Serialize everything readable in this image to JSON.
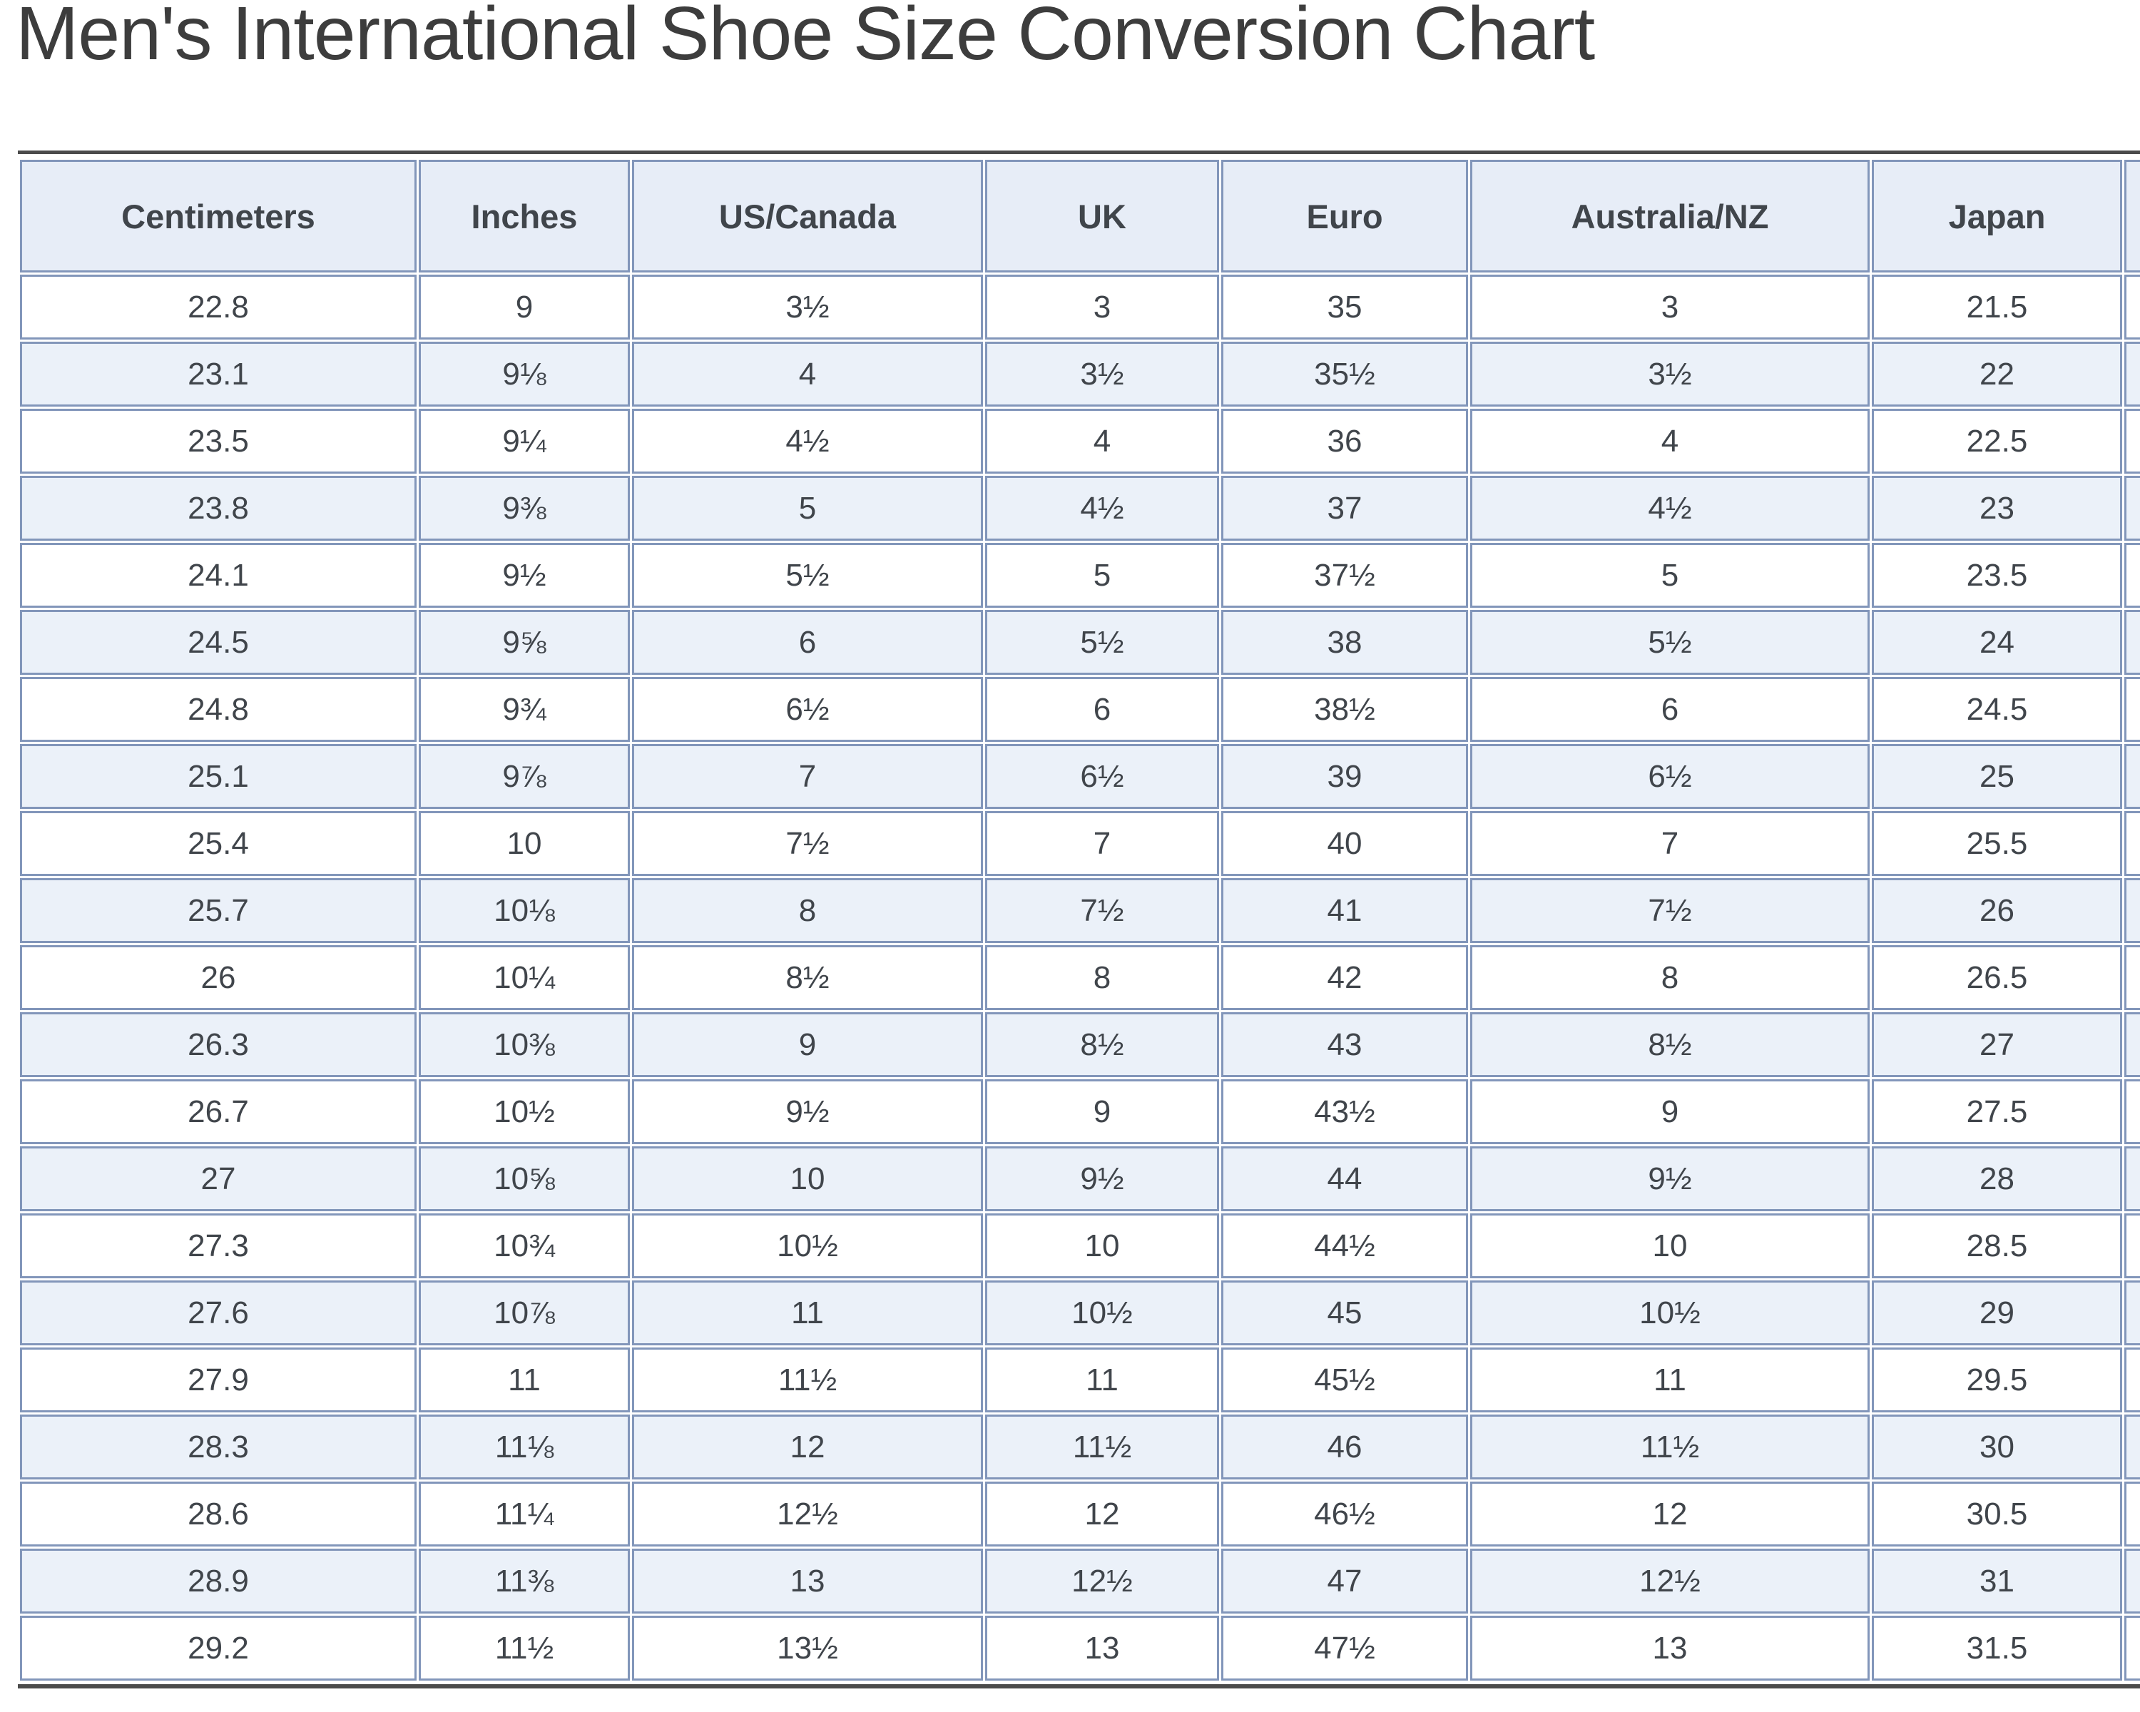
{
  "title": "Men's International Shoe Size Conversion Chart",
  "table": {
    "columns": [
      "Centimeters",
      "Inches",
      "US/Canada",
      "UK",
      "Euro",
      "Australia/NZ",
      "Japan"
    ],
    "rows": [
      [
        "22.8",
        "9",
        "3½",
        "3",
        "35",
        "3",
        "21.5"
      ],
      [
        "23.1",
        "9⅛",
        "4",
        "3½",
        "35½",
        "3½",
        "22"
      ],
      [
        "23.5",
        "9¼",
        "4½",
        "4",
        "36",
        "4",
        "22.5"
      ],
      [
        "23.8",
        "9⅜",
        "5",
        "4½",
        "37",
        "4½",
        "23"
      ],
      [
        "24.1",
        "9½",
        "5½",
        "5",
        "37½",
        "5",
        "23.5"
      ],
      [
        "24.5",
        "9⅝",
        "6",
        "5½",
        "38",
        "5½",
        "24"
      ],
      [
        "24.8",
        "9¾",
        "6½",
        "6",
        "38½",
        "6",
        "24.5"
      ],
      [
        "25.1",
        "9⅞",
        "7",
        "6½",
        "39",
        "6½",
        "25"
      ],
      [
        "25.4",
        "10",
        "7½",
        "7",
        "40",
        "7",
        "25.5"
      ],
      [
        "25.7",
        "10⅛",
        "8",
        "7½",
        "41",
        "7½",
        "26"
      ],
      [
        "26",
        "10¼",
        "8½",
        "8",
        "42",
        "8",
        "26.5"
      ],
      [
        "26.3",
        "10⅜",
        "9",
        "8½",
        "43",
        "8½",
        "27"
      ],
      [
        "26.7",
        "10½",
        "9½",
        "9",
        "43½",
        "9",
        "27.5"
      ],
      [
        "27",
        "10⅝",
        "10",
        "9½",
        "44",
        "9½",
        "28"
      ],
      [
        "27.3",
        "10¾",
        "10½",
        "10",
        "44½",
        "10",
        "28.5"
      ],
      [
        "27.6",
        "10⅞",
        "11",
        "10½",
        "45",
        "10½",
        "29"
      ],
      [
        "27.9",
        "11",
        "11½",
        "11",
        "45½",
        "11",
        "29.5"
      ],
      [
        "28.3",
        "11⅛",
        "12",
        "11½",
        "46",
        "11½",
        "30"
      ],
      [
        "28.6",
        "11¼",
        "12½",
        "12",
        "46½",
        "12",
        "30.5"
      ],
      [
        "28.9",
        "11⅜",
        "13",
        "12½",
        "47",
        "12½",
        "31"
      ],
      [
        "29.2",
        "11½",
        "13½",
        "13",
        "47½",
        "13",
        "31.5"
      ]
    ]
  },
  "colors": {
    "header_bg": "#e7edf7",
    "stripe_bg": "#ebf1f9",
    "row_bg": "#ffffff",
    "cell_border": "#8296ba",
    "rule": "#4b4b4b",
    "text": "#40454b",
    "title_text": "#3d3d3d"
  }
}
